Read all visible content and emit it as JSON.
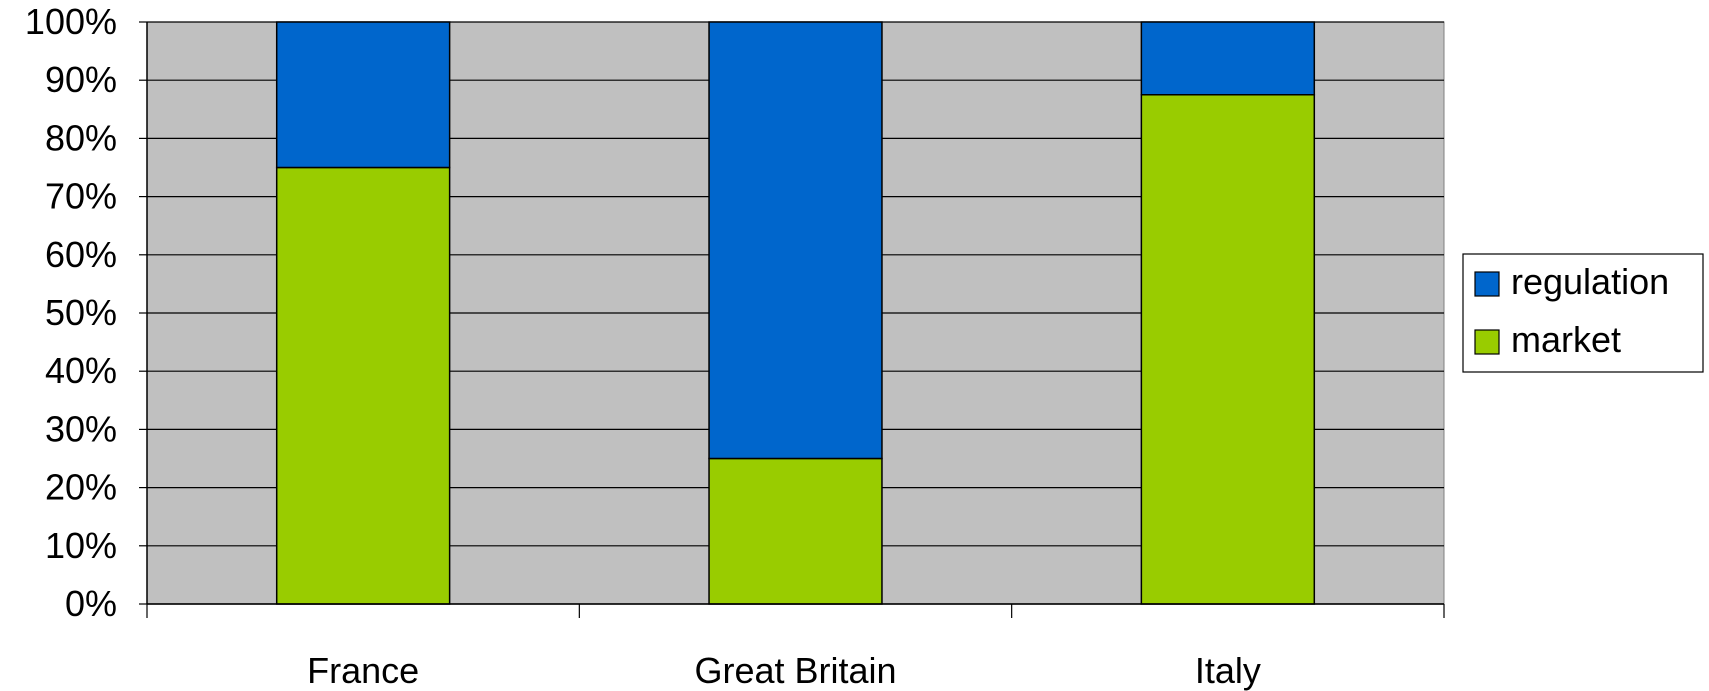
{
  "chart_data": {
    "type": "bar",
    "stacked": true,
    "percent_stacked": true,
    "categories": [
      "France",
      "Great Britain",
      "Italy"
    ],
    "series": [
      {
        "name": "market",
        "values": [
          75,
          25,
          87.5
        ],
        "color": "#99CC00"
      },
      {
        "name": "regulation",
        "values": [
          25,
          75,
          12.5
        ],
        "color": "#0066CC"
      }
    ],
    "ylim": [
      0,
      100
    ],
    "y_ticks": [
      "0%",
      "10%",
      "20%",
      "30%",
      "40%",
      "50%",
      "60%",
      "70%",
      "80%",
      "90%",
      "100%"
    ],
    "grid": true,
    "legend": {
      "placement": "right",
      "entries": [
        "regulation",
        "market"
      ]
    },
    "title": "",
    "xlabel": "",
    "ylabel": "",
    "colors": {
      "plot_background": "#C0C0C0",
      "gridline": "#000000",
      "bar_outline": "#000000"
    }
  }
}
